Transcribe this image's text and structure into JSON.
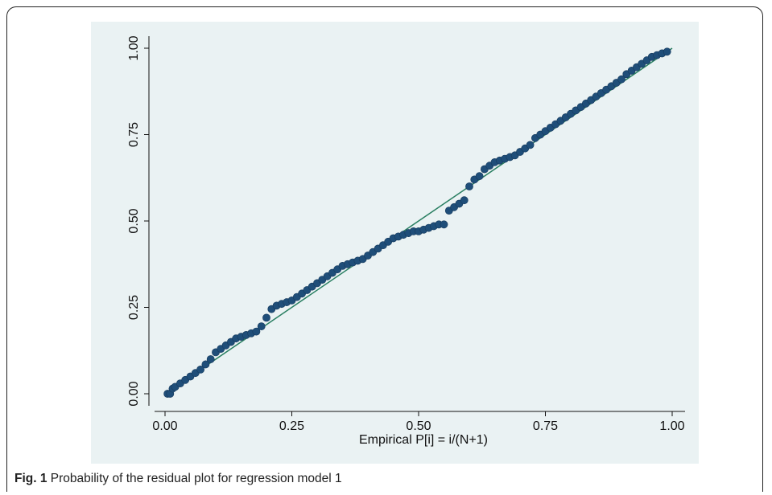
{
  "caption": {
    "label": "Fig. 1",
    "text": "Probability of the residual plot for regression model 1"
  },
  "colors": {
    "plot_background": "#eaf2f3",
    "points": "#1f4e79",
    "reference_line": "#2a7f62"
  },
  "chart_data": {
    "type": "scatter",
    "title": "",
    "xlabel": "Empirical P[i] = i/(N+1)",
    "ylabel": "",
    "xlim": [
      0,
      1
    ],
    "ylim": [
      0,
      1
    ],
    "x_ticks": [
      "0.00",
      "0.25",
      "0.50",
      "0.75",
      "1.00"
    ],
    "y_ticks": [
      "0.00",
      "0.25",
      "0.50",
      "0.75",
      "1.00"
    ],
    "grid": false,
    "legend": "none",
    "reference_line": {
      "x": [
        0,
        1
      ],
      "y": [
        0,
        1
      ]
    },
    "series": [
      {
        "x": [
          0.005,
          0.01,
          0.015,
          0.02,
          0.03,
          0.04,
          0.05,
          0.06,
          0.07,
          0.08,
          0.09,
          0.1,
          0.11,
          0.12,
          0.13,
          0.14,
          0.15,
          0.16,
          0.17,
          0.18,
          0.19,
          0.2,
          0.21,
          0.22,
          0.23,
          0.24,
          0.25,
          0.26,
          0.27,
          0.28,
          0.29,
          0.3,
          0.31,
          0.32,
          0.33,
          0.34,
          0.35,
          0.36,
          0.37,
          0.38,
          0.39,
          0.4,
          0.41,
          0.42,
          0.43,
          0.44,
          0.45,
          0.46,
          0.47,
          0.48,
          0.49,
          0.5,
          0.51,
          0.52,
          0.53,
          0.54,
          0.55,
          0.56,
          0.57,
          0.58,
          0.59,
          0.6,
          0.61,
          0.62,
          0.63,
          0.64,
          0.65,
          0.66,
          0.67,
          0.68,
          0.69,
          0.7,
          0.71,
          0.72,
          0.73,
          0.74,
          0.75,
          0.76,
          0.77,
          0.78,
          0.79,
          0.8,
          0.81,
          0.82,
          0.83,
          0.84,
          0.85,
          0.86,
          0.87,
          0.88,
          0.89,
          0.9,
          0.91,
          0.92,
          0.93,
          0.94,
          0.95,
          0.96,
          0.97,
          0.98,
          0.99
        ],
        "y": [
          0.0,
          0.0,
          0.015,
          0.02,
          0.03,
          0.04,
          0.05,
          0.06,
          0.07,
          0.085,
          0.1,
          0.12,
          0.13,
          0.14,
          0.15,
          0.16,
          0.165,
          0.17,
          0.175,
          0.18,
          0.195,
          0.22,
          0.245,
          0.255,
          0.26,
          0.265,
          0.27,
          0.28,
          0.29,
          0.3,
          0.31,
          0.32,
          0.33,
          0.34,
          0.35,
          0.36,
          0.37,
          0.375,
          0.38,
          0.385,
          0.39,
          0.4,
          0.41,
          0.42,
          0.43,
          0.44,
          0.45,
          0.455,
          0.46,
          0.465,
          0.47,
          0.47,
          0.475,
          0.48,
          0.485,
          0.49,
          0.49,
          0.53,
          0.54,
          0.55,
          0.56,
          0.6,
          0.62,
          0.63,
          0.65,
          0.66,
          0.67,
          0.675,
          0.68,
          0.685,
          0.69,
          0.7,
          0.71,
          0.72,
          0.74,
          0.75,
          0.76,
          0.77,
          0.78,
          0.79,
          0.8,
          0.81,
          0.82,
          0.83,
          0.84,
          0.85,
          0.86,
          0.87,
          0.88,
          0.89,
          0.9,
          0.91,
          0.925,
          0.935,
          0.945,
          0.955,
          0.965,
          0.975,
          0.98,
          0.985,
          0.99
        ]
      }
    ]
  }
}
